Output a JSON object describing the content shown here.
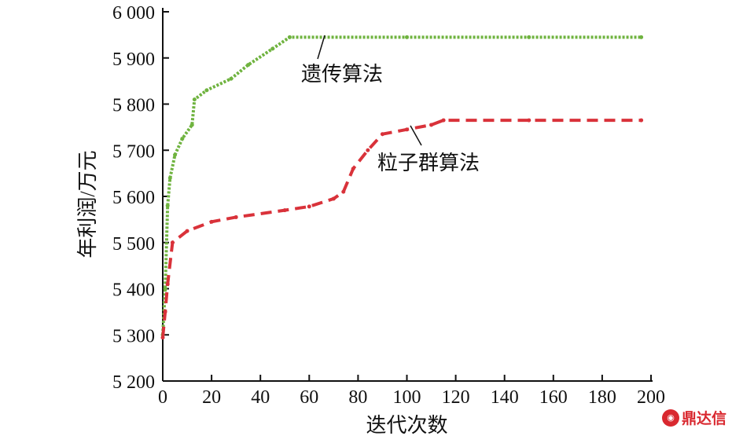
{
  "chart_data": {
    "type": "line",
    "title": "",
    "xlabel": "迭代次数",
    "ylabel": "年利润/万元",
    "xlim": [
      0,
      200
    ],
    "ylim": [
      5200,
      6000
    ],
    "xticks": [
      0,
      20,
      40,
      60,
      80,
      100,
      120,
      140,
      160,
      180,
      200
    ],
    "yticks": [
      5200,
      5300,
      5400,
      5500,
      5600,
      5700,
      5800,
      5900,
      6000
    ],
    "ytick_labels": [
      "5 200",
      "5 300",
      "5 400",
      "5 500",
      "5 600",
      "5 700",
      "5 800",
      "5 900",
      "6 000"
    ],
    "grid": false,
    "series": [
      {
        "name": "遗传算法",
        "color": "#6fb33f",
        "style": "dotted",
        "x": [
          0,
          1,
          2,
          3,
          5,
          8,
          12,
          13,
          18,
          28,
          35,
          45,
          52,
          100,
          150,
          196
        ],
        "y": [
          5300,
          5400,
          5580,
          5640,
          5690,
          5725,
          5755,
          5810,
          5830,
          5855,
          5885,
          5920,
          5945,
          5945,
          5945,
          5945
        ]
      },
      {
        "name": "粒子群算法",
        "color": "#d9323a",
        "style": "dashed",
        "x": [
          0,
          1,
          2,
          4,
          10,
          20,
          30,
          50,
          60,
          70,
          74,
          78,
          84,
          90,
          100,
          110,
          115,
          150,
          196
        ],
        "y": [
          5294,
          5350,
          5410,
          5500,
          5525,
          5545,
          5555,
          5570,
          5578,
          5595,
          5610,
          5660,
          5700,
          5735,
          5745,
          5755,
          5765,
          5765,
          5765
        ]
      }
    ],
    "annotations": [
      {
        "text": "遗传算法",
        "target_series": 0
      },
      {
        "text": "粒子群算法",
        "target_series": 1
      }
    ]
  },
  "watermark": "鼎达信"
}
